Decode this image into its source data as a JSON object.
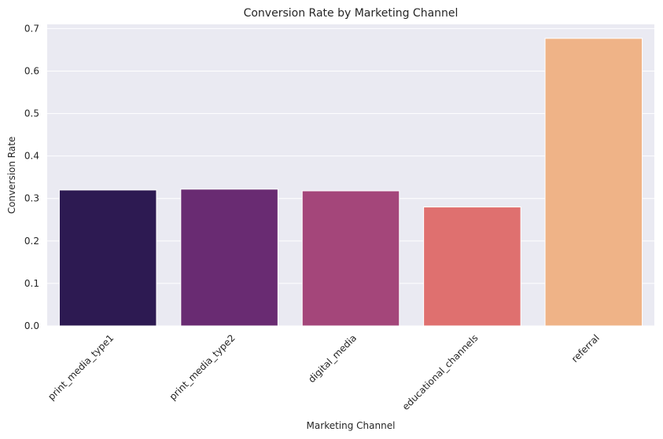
{
  "chart_data": {
    "type": "bar",
    "title": "Conversion Rate by Marketing Channel",
    "xlabel": "Marketing Channel",
    "ylabel": "Conversion Rate",
    "categories": [
      "print_media_type1",
      "print_media_type2",
      "digital_media",
      "educational_channels",
      "referral"
    ],
    "values": [
      0.32,
      0.322,
      0.318,
      0.28,
      0.677
    ],
    "colors": [
      "#2d1a52",
      "#692b72",
      "#a4467a",
      "#df706f",
      "#efb387"
    ],
    "ylim": [
      0,
      0.71
    ],
    "yticks": [
      "0.0",
      "0.1",
      "0.2",
      "0.3",
      "0.4",
      "0.5",
      "0.6",
      "0.7"
    ],
    "grid": true,
    "background": "#eaeaf2"
  }
}
